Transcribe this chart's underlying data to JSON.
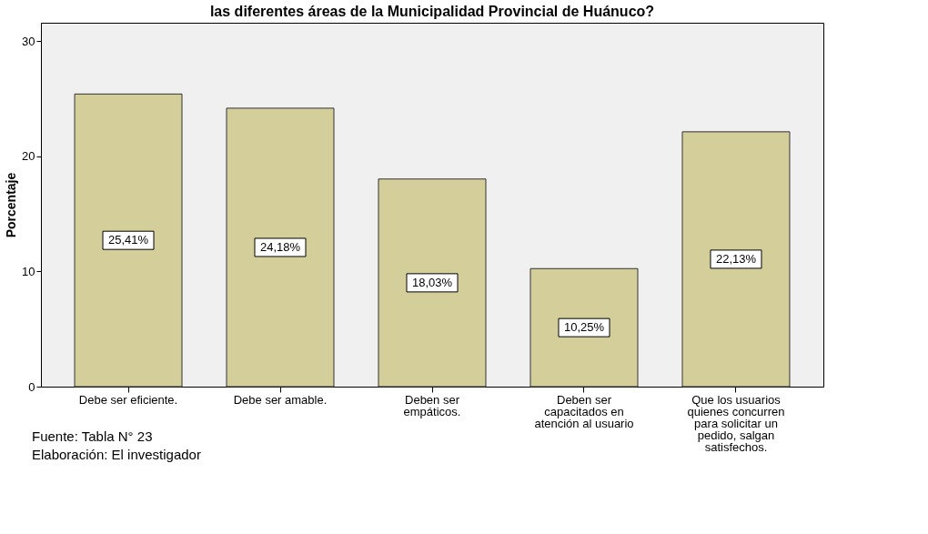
{
  "chart_data": {
    "type": "bar",
    "title": "las diferentes áreas de la Municipalidad Provincial de Huánuco?",
    "ylabel": "Porcentaje",
    "categories": [
      "Debe ser eficiente.",
      "Debe ser amable.",
      "Deben ser empáticos.",
      "Deben ser capacitados en atención al usuario",
      "Que los usuarios quienes concurren para solicitar un pedido, salgan satisfechos."
    ],
    "values": [
      25.41,
      24.18,
      18.03,
      10.25,
      22.13
    ],
    "value_labels": [
      "25,41%",
      "24,18%",
      "18,03%",
      "10,25%",
      "22,13%"
    ],
    "color": "#d3ce9a",
    "ylim": [
      0,
      31.6
    ],
    "yticks": [
      0,
      10,
      20,
      30
    ],
    "grid": false,
    "annotations": [
      "Fuente: Tabla N° 23",
      "Elaboración: El investigador"
    ]
  }
}
